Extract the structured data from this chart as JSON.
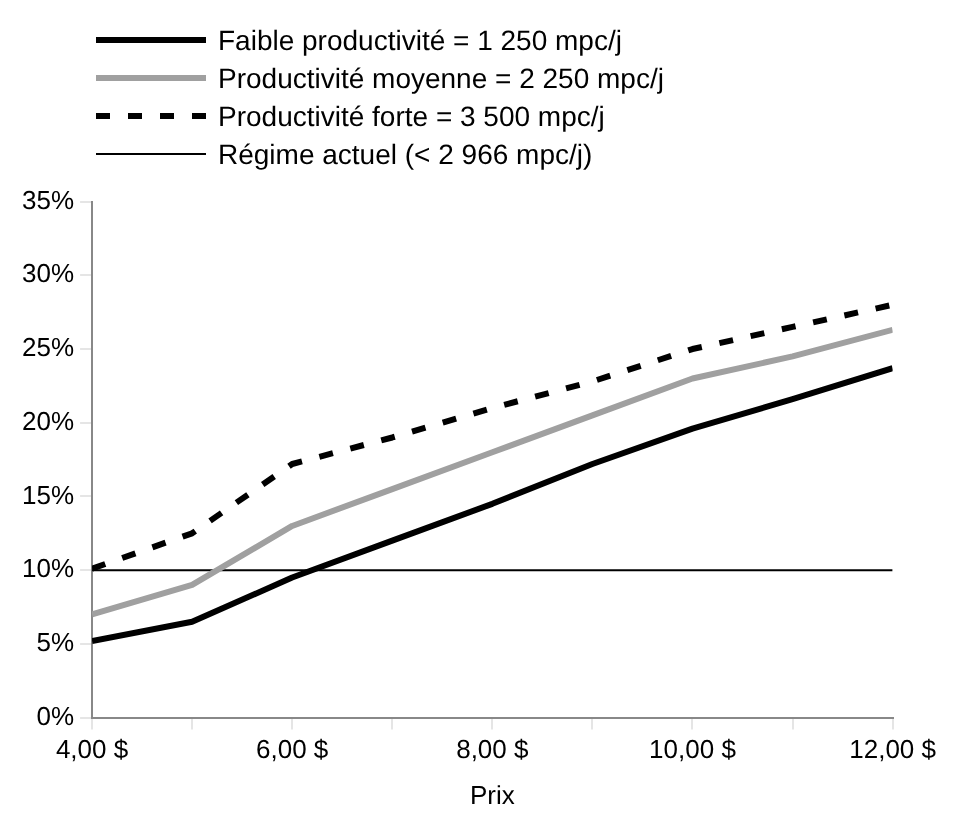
{
  "chart_data": {
    "type": "line",
    "xlabel": "Prix",
    "x": [
      4,
      5,
      6,
      7,
      8,
      9,
      10,
      11,
      12
    ],
    "xlim": [
      4,
      12
    ],
    "xticks": [
      {
        "value": 4,
        "label": "4,00 $"
      },
      {
        "value": 5,
        "label": null
      },
      {
        "value": 6,
        "label": "6,00 $"
      },
      {
        "value": 7,
        "label": null
      },
      {
        "value": 8,
        "label": "8,00 $"
      },
      {
        "value": 9,
        "label": null
      },
      {
        "value": 10,
        "label": "10,00 $"
      },
      {
        "value": 11,
        "label": null
      },
      {
        "value": 12,
        "label": "12,00 $"
      }
    ],
    "ylim": [
      0,
      35
    ],
    "yticks": [
      {
        "value": 0,
        "label": "0%"
      },
      {
        "value": 5,
        "label": "5%"
      },
      {
        "value": 10,
        "label": "10%"
      },
      {
        "value": 15,
        "label": "15%"
      },
      {
        "value": 20,
        "label": "20%"
      },
      {
        "value": 25,
        "label": "25%"
      },
      {
        "value": 30,
        "label": "30%"
      },
      {
        "value": 35,
        "label": "35%"
      }
    ],
    "grid": false,
    "legend": "top",
    "marker": "none",
    "series": [
      {
        "name": "Faible productivité = 1 250 mpc/j",
        "color": "#000000",
        "line_style": "solid",
        "values": [
          5.2,
          6.5,
          9.5,
          12,
          14.5,
          17.2,
          19.6,
          21.6,
          23.7
        ]
      },
      {
        "name": "Productivité moyenne = 2 250 mpc/j",
        "color": "#a0a0a0",
        "line_style": "solid",
        "values": [
          7,
          9,
          13,
          15.5,
          18,
          20.5,
          23,
          24.5,
          26.3
        ]
      },
      {
        "name": "Productivité forte = 3 500 mpc/j",
        "color": "#000000",
        "line_style": "dashed",
        "values": [
          10.1,
          12.5,
          17.2,
          19,
          21,
          22.8,
          25,
          26.5,
          28
        ]
      },
      {
        "name": "Régime actuel (< 2 966 mpc/j)",
        "color": "#000000",
        "line_style": "solid",
        "values": [
          10,
          10,
          10,
          10,
          10,
          10,
          10,
          10,
          10
        ]
      }
    ]
  }
}
